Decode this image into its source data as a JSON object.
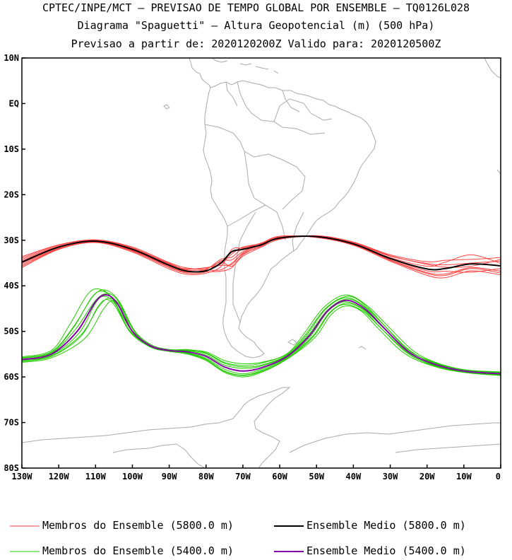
{
  "titles": {
    "line1": "CPTEC/INPE/MCT — PREVISAO DE TEMPO GLOBAL POR ENSEMBLE — TQ0126L028",
    "line2": "Diagrama \"Spaguetti\" — Altura Geopotencial (m) (500 hPa)",
    "line3": "Previsao a partir de: 2020120200Z  Valido para: 2020120500Z"
  },
  "axes": {
    "lat_labels": [
      "10N",
      "EQ",
      "10S",
      "20S",
      "30S",
      "40S",
      "50S",
      "60S",
      "70S",
      "80S"
    ],
    "lon_labels": [
      "130W",
      "120W",
      "110W",
      "100W",
      "90W",
      "80W",
      "70W",
      "60W",
      "50W",
      "40W",
      "30W",
      "20W",
      "10W",
      "0"
    ],
    "lat_range": [
      -80,
      10
    ],
    "lon_range": [
      -130,
      0
    ]
  },
  "colors": {
    "member_5800": "#ff4040",
    "mean_5800": "#000000",
    "member_5400": "#22cc00",
    "mean_5400": "#8800aa",
    "coast": "#aaaaaa"
  },
  "contours": {
    "c5800": {
      "mean": [
        [
          -130,
          -34.8
        ],
        [
          -120,
          -31.5
        ],
        [
          -110,
          -30.2
        ],
        [
          -100,
          -32
        ],
        [
          -90,
          -35.5
        ],
        [
          -85,
          -36.8
        ],
        [
          -80,
          -36.7
        ],
        [
          -76,
          -35
        ],
        [
          -73,
          -32.5
        ],
        [
          -70,
          -32
        ],
        [
          -65,
          -31
        ],
        [
          -60,
          -29.5
        ],
        [
          -50,
          -29.2
        ],
        [
          -40,
          -30.8
        ],
        [
          -30,
          -34
        ],
        [
          -20,
          -36.3
        ],
        [
          -15,
          -36.2
        ],
        [
          -8,
          -35.2
        ],
        [
          0,
          -35.6
        ]
      ],
      "members": [
        {
          "dy": [
            0.6,
            0.2,
            0.1,
            0.2,
            0.4,
            0.3,
            0.2,
            -1.5,
            -2.5,
            -1,
            -0.3,
            0,
            0.1,
            0.2,
            0.5,
            1.2,
            0.8,
            0.2,
            1.0
          ]
        },
        {
          "dy": [
            -0.6,
            -0.3,
            -0.2,
            -0.4,
            -0.5,
            -0.4,
            -0.2,
            0.5,
            -1.8,
            -0.5,
            0.2,
            0.2,
            -0.1,
            -0.2,
            -0.3,
            -0.8,
            -1.2,
            -0.8,
            -1.2
          ]
        },
        {
          "dy": [
            1.2,
            0.5,
            0.3,
            0.5,
            0.6,
            0.7,
            0.5,
            0.2,
            -3.2,
            -1.5,
            -0.5,
            -0.3,
            0.2,
            0.4,
            0.8,
            1.6,
            1.8,
            1.0,
            1.8
          ]
        },
        {
          "dy": [
            -1.2,
            -0.5,
            -0.3,
            -0.6,
            -0.8,
            -0.7,
            -0.5,
            -0.8,
            0.5,
            0.3,
            0.4,
            0.4,
            -0.2,
            -0.3,
            -0.6,
            -1.4,
            -2.0,
            -1.5,
            -2.0
          ]
        },
        {
          "dy": [
            0.3,
            0.1,
            0.0,
            0.1,
            0.2,
            0.5,
            0.7,
            -0.5,
            -2.8,
            -0.8,
            0.0,
            -0.2,
            0.0,
            0.1,
            0.2,
            0.6,
            1.4,
            2.0,
            0.5
          ]
        },
        {
          "dy": [
            -0.3,
            -0.1,
            0.0,
            -0.2,
            -0.3,
            -0.2,
            0.3,
            0.8,
            -1.2,
            0.2,
            0.1,
            0.1,
            0.0,
            0.0,
            -0.1,
            -0.4,
            -0.6,
            -1.8,
            -0.6
          ]
        },
        {
          "dy": [
            0.9,
            0.4,
            0.2,
            0.3,
            0.3,
            0.1,
            -0.2,
            -1.8,
            -3.5,
            -1.2,
            -0.2,
            -0.1,
            0.1,
            0.3,
            0.6,
            1.0,
            0.3,
            -0.5,
            1.4
          ]
        },
        {
          "dy": [
            -0.9,
            -0.4,
            -0.1,
            -0.3,
            -0.1,
            0.0,
            0.0,
            -0.2,
            -0.5,
            0.5,
            0.3,
            0.2,
            -0.1,
            -0.1,
            -0.4,
            -1.0,
            -1.5,
            -1.0,
            -1.6
          ]
        }
      ]
    },
    "c5400": {
      "mean": [
        [
          -130,
          -56.2
        ],
        [
          -122,
          -55
        ],
        [
          -115,
          -50
        ],
        [
          -110,
          -43.5
        ],
        [
          -107,
          -42
        ],
        [
          -104,
          -44
        ],
        [
          -100,
          -50
        ],
        [
          -95,
          -53.2
        ],
        [
          -90,
          -54.2
        ],
        [
          -85,
          -54.5
        ],
        [
          -80,
          -55.5
        ],
        [
          -75,
          -57.8
        ],
        [
          -70,
          -58.7
        ],
        [
          -65,
          -58
        ],
        [
          -58,
          -55.5
        ],
        [
          -52,
          -51
        ],
        [
          -47,
          -45.5
        ],
        [
          -42,
          -43.2
        ],
        [
          -37,
          -45
        ],
        [
          -32,
          -49
        ],
        [
          -25,
          -54.5
        ],
        [
          -18,
          -57.2
        ],
        [
          -10,
          -58.7
        ],
        [
          0,
          -59.3
        ]
      ],
      "members": [
        {
          "dx": [
            0,
            0,
            -1,
            -1,
            -1,
            -1,
            -1,
            -1,
            0,
            0,
            0,
            0,
            0,
            0,
            0,
            -0.8,
            -0.5,
            0,
            0.3,
            0.6,
            0.5,
            0,
            0,
            0
          ],
          "dy": [
            0.3,
            0.4,
            0.8,
            1.0,
            0.8,
            0.6,
            0.3,
            0.2,
            0.1,
            0.2,
            0.3,
            0.4,
            0.6,
            0.4,
            0.2,
            0.1,
            0.4,
            0.6,
            0.3,
            0.1,
            0.2,
            0.3,
            0.1,
            0.2
          ]
        },
        {
          "dx": [
            0,
            0,
            1,
            1,
            1,
            1,
            1,
            1,
            0,
            0,
            0,
            0,
            0,
            0,
            0,
            0.8,
            0.5,
            0,
            -0.3,
            -0.6,
            -0.5,
            0,
            0,
            0
          ],
          "dy": [
            -0.3,
            -0.4,
            -0.8,
            -0.9,
            -0.7,
            -0.6,
            -0.3,
            -0.2,
            -0.1,
            -0.2,
            -0.4,
            -0.5,
            -0.6,
            -0.3,
            -0.2,
            -0.2,
            -0.4,
            -0.6,
            -0.3,
            -0.2,
            -0.2,
            -0.3,
            -0.2,
            -0.2
          ]
        },
        {
          "dx": [
            0,
            0,
            -2,
            -2,
            -1.5,
            -1,
            -1,
            -1,
            0,
            0,
            0,
            0,
            0,
            0,
            0,
            -1.5,
            -1,
            0,
            0.8,
            1.2,
            1.0,
            0,
            0,
            0
          ],
          "dy": [
            0.6,
            0.8,
            1.5,
            1.8,
            1.2,
            0.8,
            0.5,
            0.4,
            0.2,
            0.5,
            0.8,
            1.0,
            1.2,
            1.0,
            0.6,
            0.4,
            0.8,
            1.2,
            0.6,
            0.3,
            0.4,
            0.5,
            0.3,
            0.4
          ]
        },
        {
          "dx": [
            0,
            0,
            2,
            2,
            1.5,
            1,
            1,
            1,
            0,
            0,
            0,
            0,
            0,
            0,
            0,
            1.5,
            1,
            0,
            -0.8,
            -1.2,
            -1.0,
            0,
            0,
            0
          ],
          "dy": [
            -0.6,
            -0.8,
            -1.6,
            -1.8,
            -1.3,
            -1.0,
            -0.6,
            -0.4,
            -0.2,
            -0.5,
            -0.9,
            -1.2,
            -1.3,
            -1.0,
            -0.6,
            -0.4,
            -0.8,
            -1.2,
            -0.6,
            -0.4,
            -0.4,
            -0.5,
            -0.3,
            -0.4
          ]
        },
        {
          "dx": [
            0,
            0,
            -0.5,
            0,
            0.5,
            0.5,
            0,
            0,
            0,
            0,
            0,
            0,
            0,
            0,
            0,
            -0.3,
            0,
            0.3,
            0.2,
            0,
            -0.2,
            0,
            0,
            0
          ],
          "dy": [
            0.1,
            0.2,
            0.4,
            0.3,
            0.3,
            0.2,
            0.1,
            0.1,
            0.0,
            0.3,
            0.6,
            0.8,
            0.9,
            0.6,
            0.3,
            0.1,
            0.2,
            0.3,
            0.2,
            0.1,
            0.1,
            0.2,
            0.1,
            0.1
          ]
        },
        {
          "dx": [
            0,
            0,
            0.5,
            0,
            -0.5,
            -0.5,
            0,
            0,
            0,
            0,
            0,
            0,
            0,
            0,
            0,
            0.3,
            0,
            -0.3,
            -0.2,
            0,
            0.2,
            0,
            0,
            0
          ],
          "dy": [
            -0.1,
            -0.2,
            -0.4,
            -0.3,
            -0.3,
            -0.2,
            -0.1,
            -0.1,
            0.0,
            -0.3,
            -0.6,
            -0.9,
            -0.9,
            -0.6,
            -0.3,
            -0.1,
            -0.2,
            -0.3,
            -0.2,
            -0.1,
            -0.1,
            -0.2,
            -0.1,
            -0.1
          ]
        },
        {
          "dx": [
            0,
            0,
            -1,
            -0.5,
            0,
            0.5,
            0.5,
            0,
            0,
            0,
            0,
            0,
            0,
            0,
            0,
            -1,
            -0.5,
            0.5,
            0.5,
            0.5,
            0,
            0,
            0,
            0
          ],
          "dy": [
            0.4,
            0.5,
            1.0,
            1.4,
            1.0,
            0.5,
            0.2,
            0.3,
            0.2,
            0.4,
            1.0,
            1.4,
            1.6,
            1.2,
            0.5,
            0.3,
            0.6,
            0.9,
            0.5,
            0.2,
            0.3,
            0.4,
            0.2,
            0.3
          ]
        },
        {
          "dx": [
            0,
            0,
            1,
            0.5,
            0,
            -0.5,
            -0.5,
            0,
            0,
            0,
            0,
            0,
            0,
            0,
            0,
            1,
            0.5,
            -0.5,
            -0.5,
            -0.5,
            0,
            0,
            0,
            0
          ],
          "dy": [
            -0.4,
            -0.5,
            -1.1,
            -1.3,
            -1.0,
            -0.7,
            -0.3,
            -0.3,
            -0.2,
            -0.4,
            -0.7,
            -1.0,
            -1.0,
            -0.8,
            -0.5,
            -0.3,
            -0.6,
            -0.9,
            -0.5,
            -0.3,
            -0.3,
            -0.4,
            -0.2,
            -0.3
          ]
        }
      ]
    }
  },
  "legend": {
    "members_5800": "Membros do Ensemble (5800.0 m)",
    "mean_5800": "Ensemble Medio (5800.0 m)",
    "members_5400": "Membros do Ensemble (5400.0 m)",
    "mean_5400": "Ensemble Medio (5400.0 m)"
  }
}
